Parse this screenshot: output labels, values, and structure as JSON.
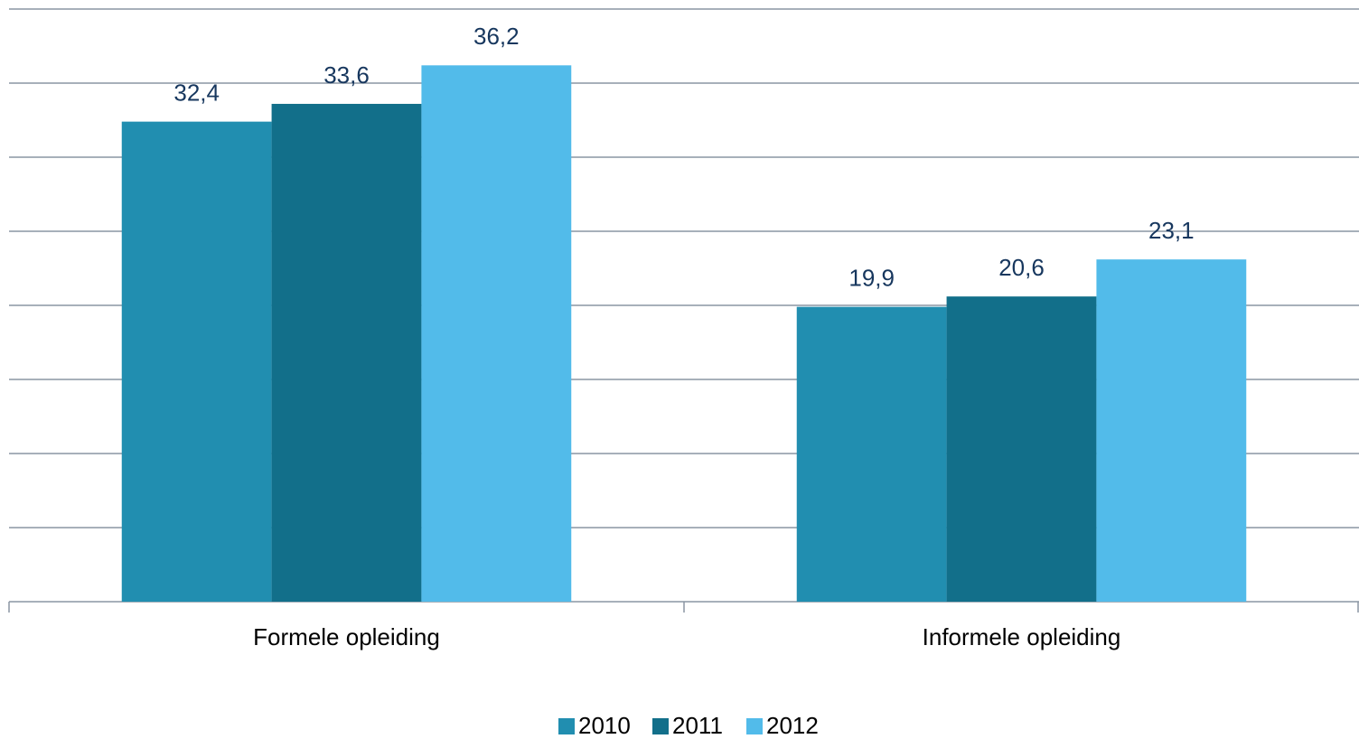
{
  "chart_data": {
    "type": "bar",
    "categories": [
      "Formele opleiding",
      "Informele opleiding"
    ],
    "series": [
      {
        "name": "2010",
        "color": "#218eb0",
        "values": [
          32.4,
          19.9
        ],
        "value_labels": [
          "32,4",
          "19,9"
        ]
      },
      {
        "name": "2011",
        "color": "#126f8a",
        "values": [
          33.6,
          20.6
        ],
        "value_labels": [
          "33,6",
          "20,6"
        ]
      },
      {
        "name": "2012",
        "color": "#52bbea",
        "values": [
          36.2,
          23.1
        ],
        "value_labels": [
          "36,2",
          "23,1"
        ]
      }
    ],
    "ylim": [
      0,
      40
    ],
    "yticks": [
      0,
      5,
      10,
      15,
      20,
      25,
      30,
      35,
      40
    ],
    "grid": true,
    "legend": "bottom"
  }
}
